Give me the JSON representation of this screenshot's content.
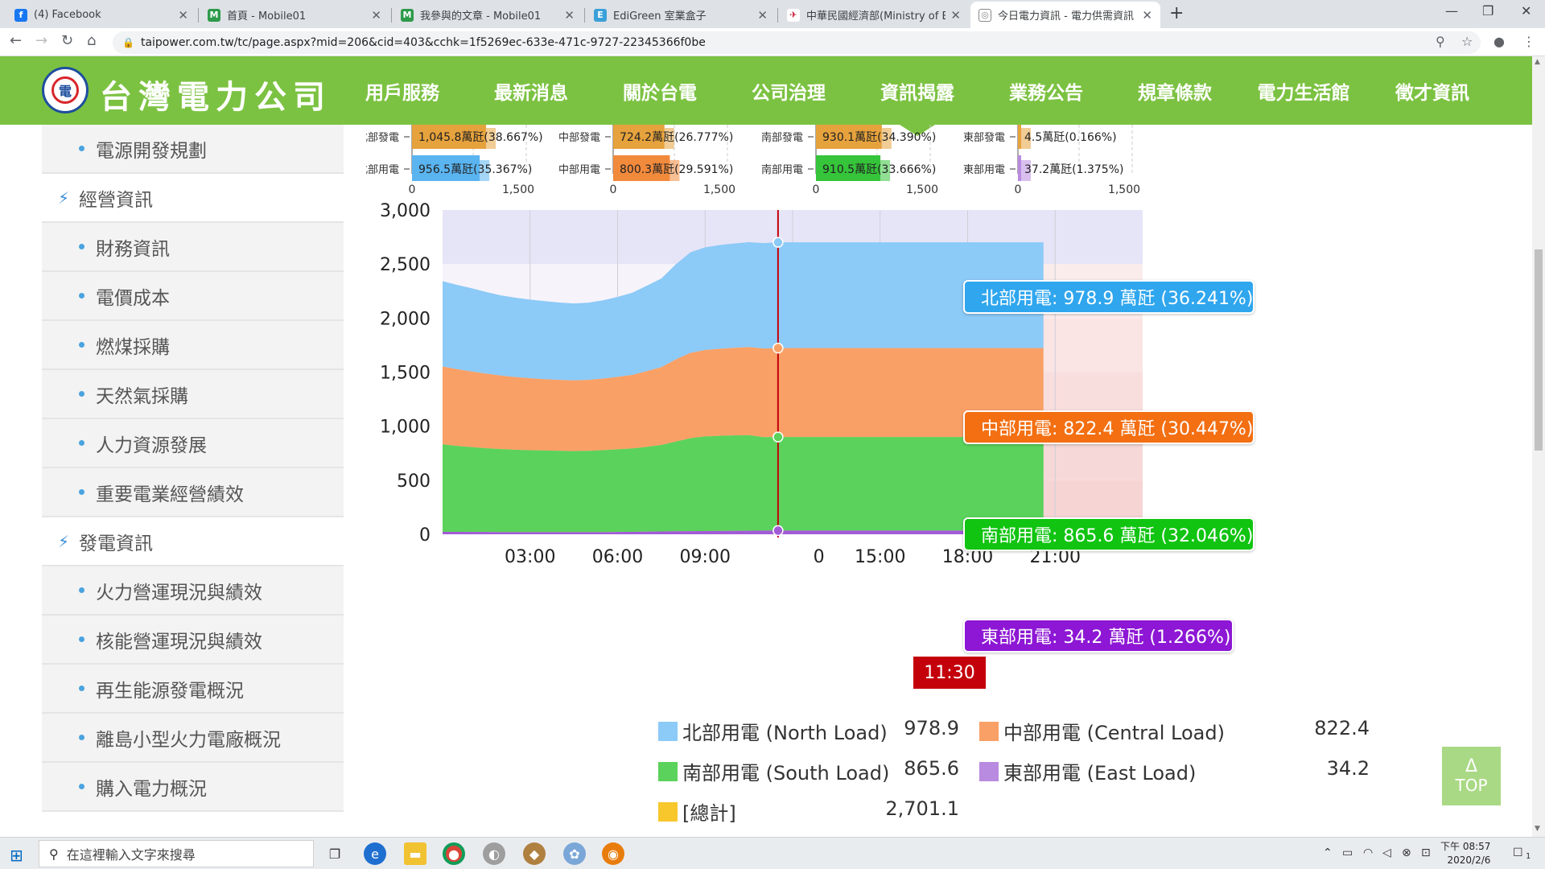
{
  "browser": {
    "tabs": [
      {
        "label": "(4) Facebook",
        "icon": "facebook-icon",
        "color": "#1877f2"
      },
      {
        "label": "首頁 - Mobile01",
        "icon": "mobile01-icon",
        "color": "#2e9a4a"
      },
      {
        "label": "我參與的文章 - Mobile01",
        "icon": "mobile01-icon",
        "color": "#2e9a4a"
      },
      {
        "label": "EdiGreen 室業盒子",
        "icon": "edigreen-icon",
        "color": "#3aa0d8"
      },
      {
        "label": "中華民國經濟部(Ministry of Eco",
        "icon": "moea-icon",
        "color": "#c8102e"
      },
      {
        "label": "今日電力資訊 - 電力供需資訊 - 資",
        "icon": "taipower-icon",
        "color": "#888888"
      }
    ],
    "url": "taipower.com.tw/tc/page.aspx?mid=206&cid=403&cchk=1f5269ec-633e-471c-9727-22345366f0be"
  },
  "header": {
    "logo_text": "台灣電力公司",
    "nav": [
      "用戶服務",
      "最新消息",
      "關於台電",
      "公司治理",
      "資訊揭露",
      "業務公告",
      "規章條款",
      "電力生活館",
      "徵才資訊"
    ],
    "active_nav": "資訊揭露"
  },
  "sidebar": {
    "items": [
      {
        "label": "電源開發規劃",
        "type": "sub"
      },
      {
        "label": "經營資訊",
        "type": "head"
      },
      {
        "label": "財務資訊",
        "type": "sub"
      },
      {
        "label": "電價成本",
        "type": "sub"
      },
      {
        "label": "燃煤採購",
        "type": "sub"
      },
      {
        "label": "天然氣採購",
        "type": "sub"
      },
      {
        "label": "人力資源發展",
        "type": "sub"
      },
      {
        "label": "重要電業經營績效",
        "type": "sub"
      },
      {
        "label": "發電資訊",
        "type": "head"
      },
      {
        "label": "火力營運現況與績效",
        "type": "sub"
      },
      {
        "label": "核能營運現況與績效",
        "type": "sub"
      },
      {
        "label": "再生能源發電概況",
        "type": "sub"
      },
      {
        "label": "離島小型火力電廠概況",
        "type": "sub"
      },
      {
        "label": "購入電力概況",
        "type": "sub"
      }
    ]
  },
  "chart_data": [
    {
      "type": "bar",
      "region": "north",
      "categories": [
        "北部發電",
        "北部用電"
      ],
      "values": [
        1045.8,
        956.5
      ],
      "data_labels": [
        "1,045.8萬瓩(38.667%)",
        "956.5萬瓩(35.367%)"
      ],
      "xticks": [
        "0",
        "1,500"
      ],
      "xlim": [
        0,
        1500
      ],
      "colors": [
        "#e6a23c",
        "#5ab4f0"
      ]
    },
    {
      "type": "bar",
      "region": "central",
      "categories": [
        "中部發電",
        "中部用電"
      ],
      "values": [
        724.2,
        800.3
      ],
      "data_labels": [
        "724.2萬瓩(26.777%)",
        "800.3萬瓩(29.591%)"
      ],
      "xticks": [
        "0",
        "1,500"
      ],
      "xlim": [
        0,
        1500
      ],
      "colors": [
        "#e6a23c",
        "#f28a3c"
      ]
    },
    {
      "type": "bar",
      "region": "south",
      "categories": [
        "南部發電",
        "南部用電"
      ],
      "values": [
        930.1,
        910.5
      ],
      "data_labels": [
        "930.1萬瓩(34.390%)",
        "910.5萬瓩(33.666%)"
      ],
      "xticks": [
        "0",
        "1,500"
      ],
      "xlim": [
        0,
        1500
      ],
      "colors": [
        "#e6a23c",
        "#35c43a"
      ]
    },
    {
      "type": "bar",
      "region": "east",
      "categories": [
        "東部發電",
        "東部用電"
      ],
      "values": [
        4.5,
        37.2
      ],
      "data_labels": [
        "4.5萬瓩(0.166%)",
        "37.2萬瓩(1.375%)"
      ],
      "xticks": [
        "0",
        "1,500"
      ],
      "xlim": [
        0,
        1500
      ],
      "colors": [
        "#e6a23c",
        "#b98be0"
      ]
    },
    {
      "type": "area",
      "stacked": true,
      "x_hours": [
        0,
        0.5,
        1,
        1.5,
        2,
        2.5,
        3,
        3.5,
        4,
        4.5,
        5,
        5.5,
        6,
        6.5,
        7,
        7.5,
        8,
        8.5,
        9,
        9.5,
        10,
        10.5,
        11,
        11.5
      ],
      "xticks": [
        "03:00",
        "06:00",
        "09:00",
        "11:30",
        "15:00",
        "18:00",
        "21:00"
      ],
      "yticks": [
        "0",
        "500",
        "1,000",
        "1,500",
        "2,000",
        "2,500",
        "3,000"
      ],
      "ylim": [
        0,
        3000
      ],
      "xlim_hours": [
        0,
        24
      ],
      "current_time": "11:30",
      "series": [
        {
          "name": "東部用電",
          "color": "#a25bd6",
          "values": [
            22,
            22,
            21,
            21,
            20,
            20,
            20,
            20,
            20,
            20,
            20,
            20,
            21,
            22,
            24,
            26,
            28,
            29,
            30,
            31,
            32,
            33,
            34,
            34.2
          ]
        },
        {
          "name": "南部用電",
          "color": "#5bd25b",
          "values": [
            810,
            795,
            785,
            775,
            768,
            762,
            758,
            755,
            752,
            750,
            752,
            758,
            765,
            772,
            785,
            800,
            830,
            860,
            875,
            880,
            883,
            884,
            865,
            865.6
          ]
        },
        {
          "name": "中部用電",
          "color": "#f9a066",
          "values": [
            720,
            710,
            700,
            690,
            680,
            672,
            665,
            660,
            656,
            654,
            656,
            662,
            670,
            680,
            700,
            720,
            760,
            790,
            800,
            805,
            810,
            815,
            820,
            822.4
          ]
        },
        {
          "name": "北部用電",
          "color": "#8ccaf7",
          "values": [
            790,
            780,
            770,
            755,
            742,
            735,
            728,
            722,
            716,
            712,
            715,
            724,
            740,
            760,
            790,
            820,
            880,
            930,
            950,
            960,
            965,
            970,
            975,
            978.9
          ]
        }
      ],
      "tooltips": [
        {
          "label": "北部用電: 978.9 萬瓩 (36.241%)",
          "color": "#2fa6ee"
        },
        {
          "label": "中部用電: 822.4 萬瓩 (30.447%)",
          "color": "#f36f12"
        },
        {
          "label": "南部用電: 865.6 萬瓩 (32.046%)",
          "color": "#11c411"
        },
        {
          "label": "東部用電: 34.2 萬瓩 (1.266%)",
          "color": "#8d17d4"
        }
      ],
      "legend": [
        {
          "label": "北部用電 (North Load)",
          "value": "978.9",
          "color": "#8ccaf7"
        },
        {
          "label": "中部用電 (Central Load)",
          "value": "822.4",
          "color": "#f9a066"
        },
        {
          "label": "南部用電 (South Load)",
          "value": "865.6",
          "color": "#5bd25b"
        },
        {
          "label": "東部用電 (East Load)",
          "value": "34.2",
          "color": "#b98be0"
        },
        {
          "label": "[總計]",
          "value": "2,701.1",
          "color": "#f7c72c"
        }
      ]
    }
  ],
  "top_button": {
    "arrow": "Δ",
    "label": "TOP"
  },
  "taskbar": {
    "search_placeholder": "在這裡輸入文字來搜尋",
    "time": "下午 08:57",
    "date": "2020/2/6",
    "notification_count": "1"
  },
  "colors": {
    "brand_green": "#7cc242",
    "now_marker": "#c4000b"
  }
}
